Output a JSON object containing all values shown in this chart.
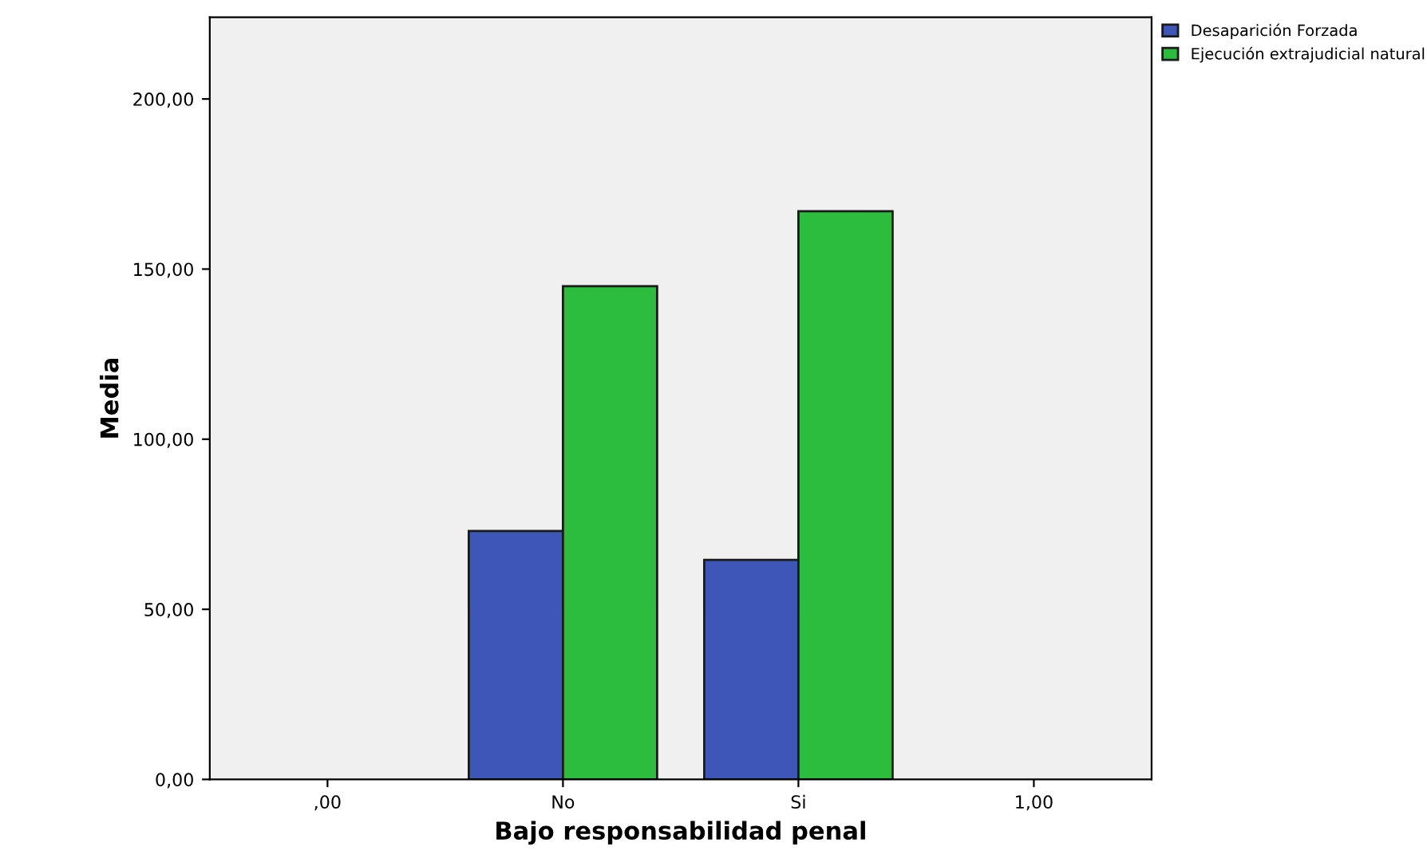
{
  "chart_data": {
    "type": "bar",
    "xlabel": "Bajo responsabilidad penal",
    "ylabel": "Media",
    "categories": [
      ",00",
      "No",
      "Si",
      "1,00"
    ],
    "series": [
      {
        "name": "Desaparición Forzada",
        "color": "#3e56b8",
        "values": [
          null,
          73,
          64.5,
          null
        ]
      },
      {
        "name": "Ejecución extrajudicial natural",
        "color": "#2dbd3e",
        "values": [
          null,
          145,
          167,
          null
        ]
      }
    ],
    "ylim": [
      0,
      224
    ],
    "yticks": [
      {
        "value": 0,
        "label": "0,00"
      },
      {
        "value": 50,
        "label": "50,00"
      },
      {
        "value": 100,
        "label": "100,00"
      },
      {
        "value": 150,
        "label": "150,00"
      },
      {
        "value": 200,
        "label": "200,00"
      }
    ],
    "grid": false,
    "legend": "top right"
  }
}
